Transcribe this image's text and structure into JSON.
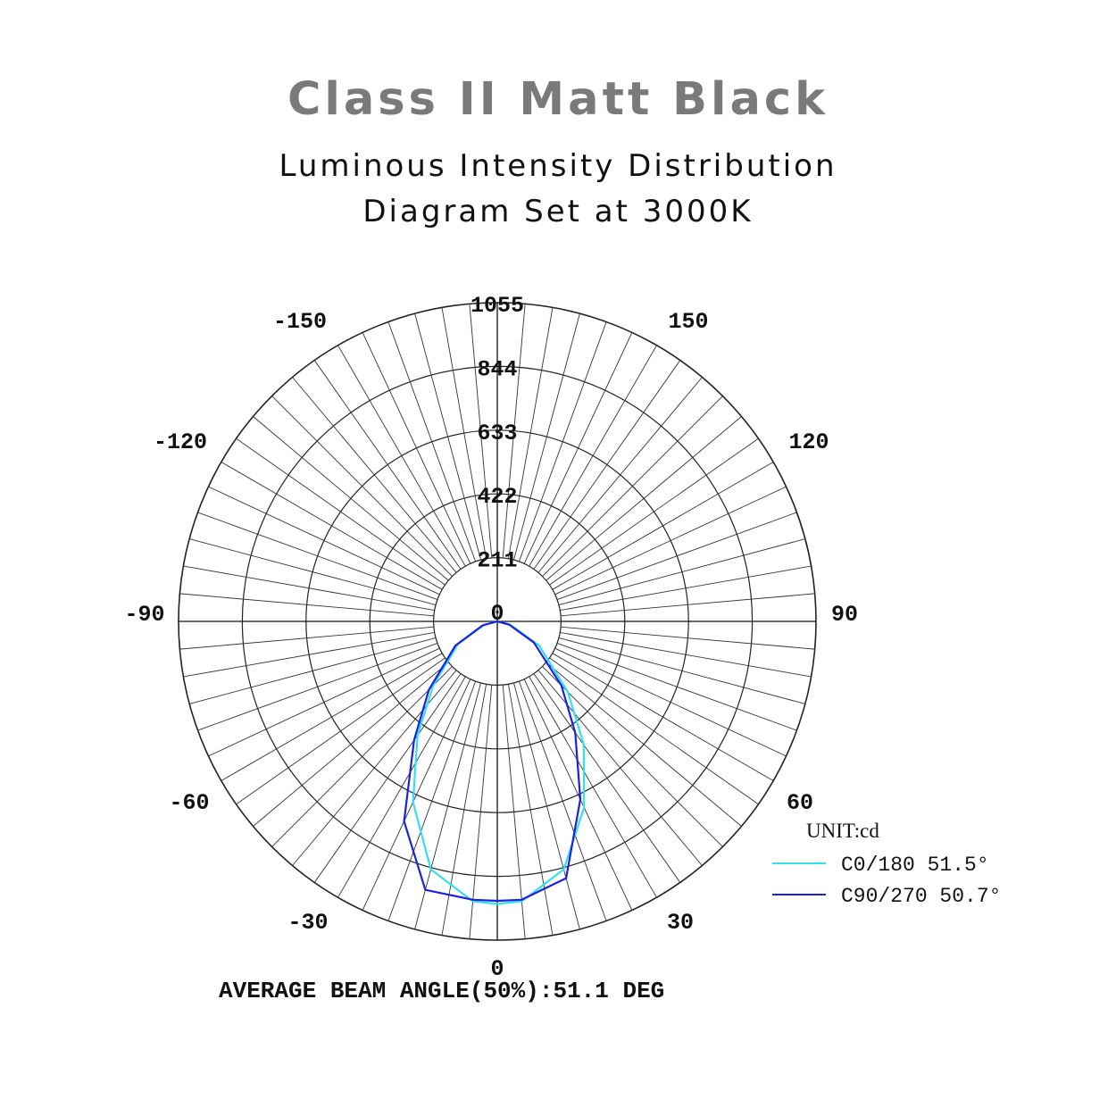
{
  "header": {
    "title": "Class II Matt Black",
    "subtitle_line1": "Luminous Intensity Distribution",
    "subtitle_line2": "Diagram Set at 3000K"
  },
  "chart_data": {
    "type": "polar",
    "radial_ticks": [
      0,
      211,
      422,
      633,
      844,
      1055
    ],
    "radial_max": 1055,
    "radial_tick_labels": [
      "0",
      "211",
      "422",
      "633",
      "844",
      "1055"
    ],
    "angle_labels": [
      {
        "angle": 0,
        "text": "0"
      },
      {
        "angle": 30,
        "text": "30"
      },
      {
        "angle": 60,
        "text": "60"
      },
      {
        "angle": 90,
        "text": "90"
      },
      {
        "angle": 120,
        "text": "120"
      },
      {
        "angle": 150,
        "text": "150"
      },
      {
        "angle": -30,
        "text": "-30"
      },
      {
        "angle": -60,
        "text": "-60"
      },
      {
        "angle": -90,
        "text": "-90"
      },
      {
        "angle": -120,
        "text": "-120"
      },
      {
        "angle": -150,
        "text": "-150"
      },
      {
        "angle": 180,
        "text": "1055"
      }
    ],
    "unit_label": "UNIT:cd",
    "grid": true,
    "legend_position": "bottom-right",
    "series": [
      {
        "name": "C0/180 51.5°",
        "color": "#33e0f0",
        "angles": [
          -90,
          -75,
          -60,
          -45,
          -35,
          -25,
          -15,
          -5,
          0,
          5,
          15,
          25,
          35,
          45,
          60,
          75,
          90
        ],
        "values": [
          0,
          45,
          150,
          300,
          460,
          660,
          850,
          930,
          935,
          930,
          850,
          680,
          500,
          330,
          160,
          45,
          0
        ]
      },
      {
        "name": "C90/270 50.7°",
        "color": "#1a22dd",
        "angles": [
          -90,
          -75,
          -60,
          -45,
          -35,
          -25,
          -15,
          -5,
          0,
          5,
          15,
          25,
          35,
          45,
          60,
          75,
          90
        ],
        "values": [
          0,
          50,
          160,
          320,
          480,
          730,
          920,
          925,
          925,
          925,
          880,
          650,
          450,
          300,
          140,
          40,
          0
        ]
      }
    ],
    "footer": "AVERAGE BEAM ANGLE(50%):51.1 DEG"
  }
}
